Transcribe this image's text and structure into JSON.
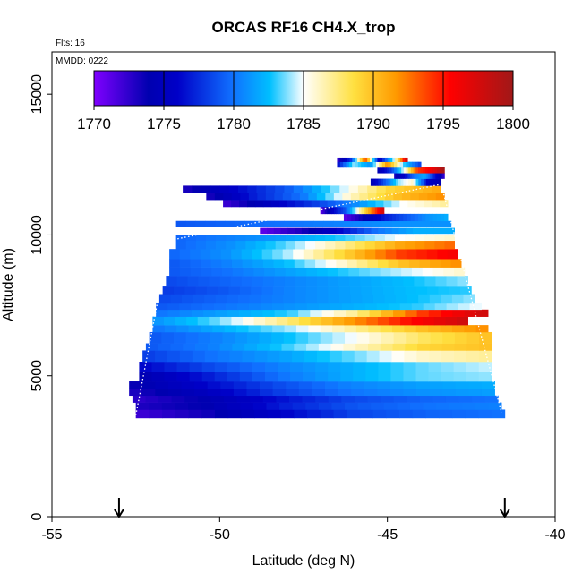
{
  "chart_data": {
    "type": "heatmap",
    "title": "ORCAS RF16 CH4.X_trop",
    "flights_label": "Flts: 16",
    "date_label": "MMDD: 0222",
    "xlabel": "Latitude (deg N)",
    "ylabel": "Altitude (m)",
    "xlim": [
      -55,
      -40
    ],
    "ylim": [
      0,
      16500
    ],
    "x_ticks": [
      -55,
      -50,
      -45,
      -40
    ],
    "x_tick_labels": [
      "-55",
      "-50",
      "-45",
      "-40"
    ],
    "y_ticks": [
      0,
      5000,
      10000,
      15000
    ],
    "y_tick_labels": [
      "0",
      "5000",
      "10000",
      "15000"
    ],
    "colorbar": {
      "range": [
        1770,
        1800
      ],
      "ticks": [
        1770,
        1775,
        1780,
        1785,
        1790,
        1795,
        1800
      ],
      "tick_labels": [
        "1770",
        "1775",
        "1780",
        "1785",
        "1790",
        "1795",
        "1800"
      ],
      "colors": [
        "#8000ff",
        "#0000b0",
        "#1060ff",
        "#00c0ff",
        "#ffffff",
        "#ffe040",
        "#ff9000",
        "#ff0000",
        "#a01010"
      ]
    },
    "arrows_at_latitude": [
      -53,
      -41.5
    ],
    "dotted_path": [
      {
        "lat": -52.5,
        "alt": 3600
      },
      {
        "lat": -51.5,
        "alt": 9800
      },
      {
        "lat": -43.4,
        "alt": 11800
      },
      {
        "lat": -41.8,
        "alt": 4600
      },
      {
        "lat": -41.6,
        "alt": 3700
      }
    ],
    "layers": [
      {
        "alt_bot": 3500,
        "alt_top": 3800,
        "lat_min": -52.5,
        "lat_max": -41.5,
        "values": [
          1772,
          1773.5,
          1776,
          1778.5,
          1779.5,
          1780
        ]
      },
      {
        "alt_bot": 3800,
        "alt_top": 4050,
        "lat_min": -52.5,
        "lat_max": -41.6,
        "values": [
          1773,
          1774,
          1777,
          1779,
          1780,
          1780.5
        ]
      },
      {
        "alt_bot": 4050,
        "alt_top": 4300,
        "lat_min": -52.6,
        "lat_max": -41.7,
        "values": [
          1772.5,
          1774,
          1776.5,
          1778.5,
          1779.5,
          1780
        ]
      },
      {
        "alt_bot": 4300,
        "alt_top": 4550,
        "lat_min": -52.7,
        "lat_max": -41.8,
        "values": [
          1773,
          1775,
          1778,
          1780,
          1781,
          1781.5
        ]
      },
      {
        "alt_bot": 4550,
        "alt_top": 4800,
        "lat_min": -52.7,
        "lat_max": -41.8,
        "values": [
          1773.5,
          1776,
          1778.5,
          1780.5,
          1781.5,
          1782
        ]
      },
      {
        "alt_bot": 4800,
        "alt_top": 5150,
        "lat_min": -52.4,
        "lat_max": -41.9,
        "values": [
          1774,
          1777,
          1780,
          1782,
          1783.5,
          1784
        ]
      },
      {
        "alt_bot": 5150,
        "alt_top": 5500,
        "lat_min": -52.4,
        "lat_max": -41.9,
        "values": [
          1776,
          1778.5,
          1780.5,
          1782,
          1783.5,
          1784.5
        ]
      },
      {
        "alt_bot": 5500,
        "alt_top": 5900,
        "lat_min": -52.3,
        "lat_max": -41.9,
        "values": [
          1778,
          1780,
          1781.5,
          1783.5,
          1786,
          1787
        ]
      },
      {
        "alt_bot": 5900,
        "alt_top": 6150,
        "lat_min": -52.2,
        "lat_max": -41.9,
        "values": [
          1779,
          1780.5,
          1783,
          1786,
          1789,
          1790
        ]
      },
      {
        "alt_bot": 6150,
        "alt_top": 6550,
        "lat_min": -52.1,
        "lat_max": -41.9,
        "values": [
          1779,
          1780.5,
          1782.5,
          1785,
          1788,
          1790
        ]
      },
      {
        "alt_bot": 6550,
        "alt_top": 6800,
        "lat_min": -52.0,
        "lat_max": -42.0,
        "values": [
          1780,
          1782,
          1784,
          1787,
          1790,
          1792
        ]
      },
      {
        "alt_bot": 6800,
        "alt_top": 7100,
        "lat_min": -52.0,
        "lat_max": -42.6,
        "values": [
          1781,
          1783.5,
          1787,
          1791,
          1795,
          1798
        ]
      },
      {
        "alt_bot": 7100,
        "alt_top": 7350,
        "lat_min": -51.9,
        "lat_max": -42.0,
        "values": [
          1780,
          1781.5,
          1783,
          1787,
          1794,
          1798
        ]
      },
      {
        "alt_bot": 7350,
        "alt_top": 7600,
        "lat_min": -51.9,
        "lat_max": -42.2,
        "values": [
          1779,
          1780,
          1781,
          1782,
          1783,
          1785
        ]
      },
      {
        "alt_bot": 7600,
        "alt_top": 7900,
        "lat_min": -51.8,
        "lat_max": -42.4,
        "values": [
          1778.5,
          1779.5,
          1780.5,
          1781.5,
          1782.5,
          1784
        ]
      },
      {
        "alt_bot": 7900,
        "alt_top": 8200,
        "lat_min": -51.7,
        "lat_max": -42.5,
        "values": [
          1778,
          1779,
          1780.5,
          1781.5,
          1782.5,
          1783
        ]
      },
      {
        "alt_bot": 8200,
        "alt_top": 8550,
        "lat_min": -51.6,
        "lat_max": -42.6,
        "values": [
          1778.5,
          1779.5,
          1780.5,
          1781.5,
          1782.5,
          1784
        ]
      },
      {
        "alt_bot": 8550,
        "alt_top": 8850,
        "lat_min": -51.5,
        "lat_max": -42.7,
        "values": [
          1779,
          1780,
          1781.5,
          1783,
          1784.5,
          1786
        ]
      },
      {
        "alt_bot": 8850,
        "alt_top": 9150,
        "lat_min": -51.5,
        "lat_max": -42.8,
        "values": [
          1779,
          1780.5,
          1782.5,
          1786,
          1790,
          1792
        ]
      },
      {
        "alt_bot": 9150,
        "alt_top": 9500,
        "lat_min": -51.5,
        "lat_max": -42.9,
        "values": [
          1779.5,
          1781,
          1784,
          1789,
          1794,
          1796
        ]
      },
      {
        "alt_bot": 9500,
        "alt_top": 9800,
        "lat_min": -51.3,
        "lat_max": -43.0,
        "values": [
          1779.5,
          1781,
          1783.5,
          1787,
          1791,
          1793
        ]
      },
      {
        "alt_bot": 9800,
        "alt_top": 10000,
        "lat_min": -51.3,
        "lat_max": -43.0,
        "values": [
          1779.5,
          1780.5,
          1781.5,
          1783,
          1785,
          1786
        ]
      },
      {
        "alt_bot": 10050,
        "alt_top": 10250,
        "lat_min": -48.8,
        "lat_max": -43.0,
        "values": [
          1771,
          1773,
          1776,
          1780,
          1782,
          1782
        ]
      },
      {
        "alt_bot": 10300,
        "alt_top": 10500,
        "lat_min": -51.3,
        "lat_max": -43.1,
        "values": [
          1779,
          1779.5,
          1780,
          1780.5,
          1781,
          1781
        ]
      },
      {
        "alt_bot": 10500,
        "alt_top": 10750,
        "lat_min": -46.3,
        "lat_max": -43.2,
        "values": [
          1771,
          1774,
          1777,
          1779,
          1781,
          1782
        ]
      },
      {
        "alt_bot": 10750,
        "alt_top": 11000,
        "lat_min": -47.0,
        "lat_max": -45.1,
        "values": [
          1771,
          1776,
          1779,
          1786,
          1792,
          1798
        ]
      },
      {
        "alt_bot": 11000,
        "alt_top": 11250,
        "lat_min": -49.9,
        "lat_max": -43.2,
        "values": [
          1772,
          1775,
          1778,
          1781,
          1785,
          1787
        ]
      },
      {
        "alt_bot": 11250,
        "alt_top": 11500,
        "lat_min": -50.4,
        "lat_max": -43.3,
        "values": [
          1773,
          1777,
          1780,
          1786,
          1790,
          1792
        ]
      },
      {
        "alt_bot": 11500,
        "alt_top": 11750,
        "lat_min": -51.1,
        "lat_max": -43.4,
        "values": [
          1773,
          1776,
          1779,
          1784,
          1789,
          1791
        ]
      },
      {
        "alt_bot": 11750,
        "alt_top": 12000,
        "lat_min": -45.5,
        "lat_max": -43.4,
        "values": [
          1774,
          1779,
          1784,
          1786,
          1776,
          1774
        ]
      },
      {
        "alt_bot": 12000,
        "alt_top": 12200,
        "lat_min": -44.8,
        "lat_max": -43.3,
        "values": [
          1773,
          1776,
          1780,
          1782,
          1777,
          1772
        ]
      },
      {
        "alt_bot": 12200,
        "alt_top": 12400,
        "lat_min": -45.3,
        "lat_max": -43.3,
        "values": [
          1774,
          1778,
          1785,
          1794,
          1796,
          1800
        ]
      },
      {
        "alt_bot": 12400,
        "alt_top": 12600,
        "lat_min": -46.5,
        "lat_max": -44.0,
        "values": [
          1776,
          1784,
          1781,
          1792,
          1783,
          1778
        ]
      },
      {
        "alt_bot": 12600,
        "alt_top": 12750,
        "lat_min": -46.5,
        "lat_max": -44.4,
        "values": [
          1772,
          1778,
          1794,
          1775,
          1784,
          1799
        ]
      }
    ]
  }
}
